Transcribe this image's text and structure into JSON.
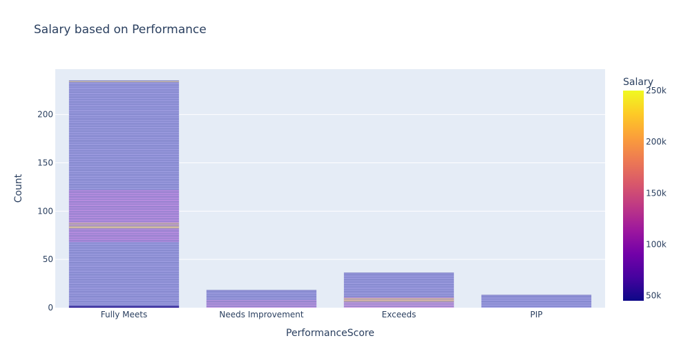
{
  "chart_data": {
    "type": "bar",
    "title": "Salary based on Performance",
    "xlabel": "PerformanceScore",
    "ylabel": "Count",
    "categories": [
      "Fully Meets",
      "Needs Improvement",
      "Exceeds",
      "PIP"
    ],
    "values": [
      235,
      18,
      36,
      13
    ],
    "ylim": [
      0,
      247
    ],
    "yticks": [
      0,
      50,
      100,
      150,
      200
    ],
    "grid": true,
    "bar_style": "stacked unit segments, one per employee, colored by Salary",
    "colorbar": {
      "title": "Salary",
      "range": [
        45000,
        250000
      ],
      "ticks": [
        50000,
        100000,
        150000,
        200000,
        250000
      ],
      "tick_labels": [
        "50k",
        "100k",
        "150k",
        "200k",
        "250k"
      ],
      "colorscale": [
        "#0d0887",
        "#46039f",
        "#7201a8",
        "#9c179e",
        "#bd3786",
        "#d8576b",
        "#ed7953",
        "#fb9f3a",
        "#fdca26",
        "#f0f921"
      ]
    },
    "highlight_bands": [
      {
        "category": "Fully Meets",
        "from": 0,
        "to": 2,
        "color": "#2a1596"
      },
      {
        "category": "Fully Meets",
        "from": 68,
        "to": 122,
        "color": "#cc94ea"
      },
      {
        "category": "Fully Meets",
        "from": 82,
        "to": 85,
        "color": "#f2d09c"
      },
      {
        "category": "Fully Meets",
        "from": 86,
        "to": 88,
        "color": "#f2c9a8"
      },
      {
        "category": "Fully Meets",
        "from": 233.5,
        "to": 235,
        "color": "#f2d69a"
      },
      {
        "category": "Needs Improvement",
        "from": 0,
        "to": 8,
        "color": "#c79ae6"
      },
      {
        "category": "Exceeds",
        "from": 0,
        "to": 11,
        "color": "#d3a0e6"
      },
      {
        "category": "Exceeds",
        "from": 6,
        "to": 10,
        "color": "#f6c9a0"
      }
    ]
  }
}
